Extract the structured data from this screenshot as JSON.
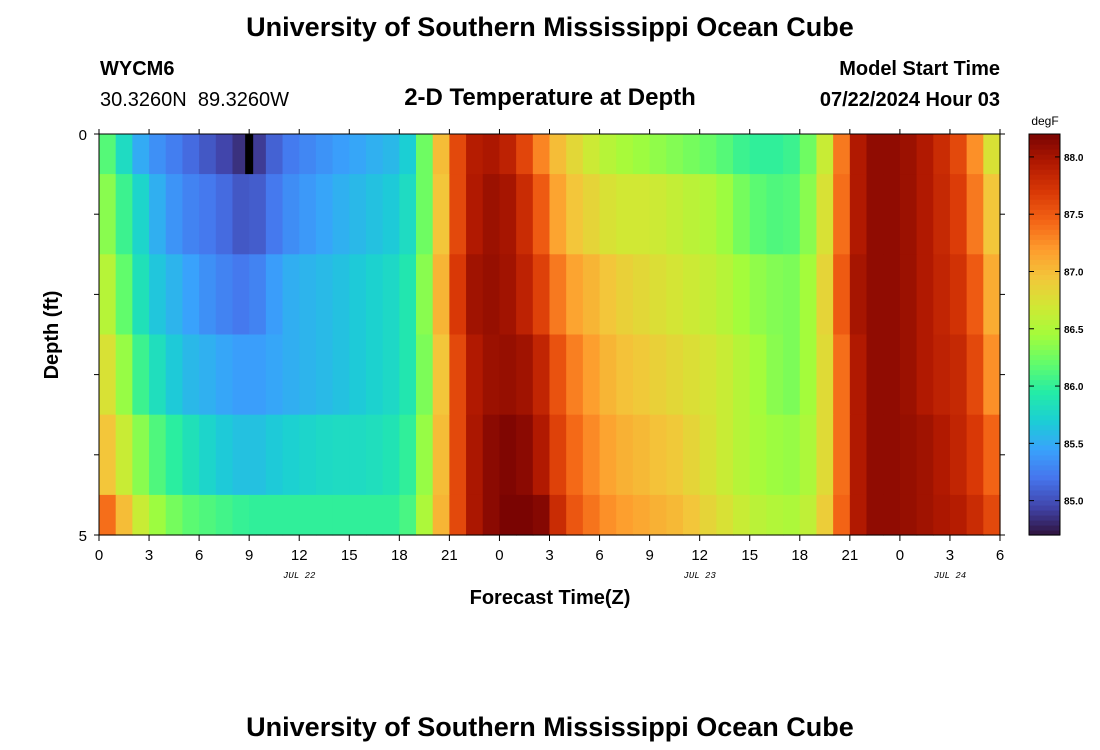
{
  "header": {
    "title": "University of Southern Mississippi Ocean Cube",
    "station_id": "WYCM6",
    "station_coords": "30.3260N  89.3260W",
    "subtitle": "2-D Temperature at Depth",
    "model_start_label": "Model Start Time",
    "model_start_value": "07/22/2024 Hour 03"
  },
  "footer": {
    "title": "University of Southern Mississippi Ocean Cube"
  },
  "colors": {
    "marker": "#000000",
    "colormap": [
      "#30123b",
      "#4145ab",
      "#4675ed",
      "#39a2fc",
      "#1bcfd4",
      "#24eca6",
      "#61fc6c",
      "#a4fc3b",
      "#d1e834",
      "#f3c63a",
      "#fe9b2d",
      "#f36315",
      "#d93806",
      "#b11901",
      "#7a0402"
    ]
  },
  "chart_data": {
    "type": "heatmap",
    "xlabel": "Forecast Time(Z)",
    "ylabel": "Depth (ft)",
    "x_range_hours": [
      0,
      54
    ],
    "x_ticks": [
      {
        "h": 0,
        "label": "0"
      },
      {
        "h": 3,
        "label": "3"
      },
      {
        "h": 6,
        "label": "6"
      },
      {
        "h": 9,
        "label": "9"
      },
      {
        "h": 12,
        "label": "12"
      },
      {
        "h": 15,
        "label": "15"
      },
      {
        "h": 18,
        "label": "18"
      },
      {
        "h": 21,
        "label": "21"
      },
      {
        "h": 24,
        "label": "0"
      },
      {
        "h": 27,
        "label": "3"
      },
      {
        "h": 30,
        "label": "6"
      },
      {
        "h": 33,
        "label": "9"
      },
      {
        "h": 36,
        "label": "12"
      },
      {
        "h": 39,
        "label": "15"
      },
      {
        "h": 42,
        "label": "18"
      },
      {
        "h": 45,
        "label": "21"
      },
      {
        "h": 48,
        "label": "0"
      },
      {
        "h": 51,
        "label": "3"
      },
      {
        "h": 54,
        "label": "6"
      }
    ],
    "date_labels": [
      {
        "h": 12,
        "label": "JUL 22"
      },
      {
        "h": 36,
        "label": "JUL 23"
      },
      {
        "h": 51,
        "label": "JUL 24"
      }
    ],
    "y_range": [
      0,
      5
    ],
    "y_ticks": [
      {
        "v": 0,
        "label": "0"
      },
      {
        "v": 5,
        "label": "5"
      }
    ],
    "depth_bins": [
      0,
      0.5,
      1.5,
      2.5,
      3.5,
      4.5,
      5
    ],
    "value_range": [
      84.7,
      88.2
    ],
    "colorbar_unit": "degF",
    "colorbar_ticks": [
      "85.0",
      "85.5",
      "86.0",
      "86.5",
      "87.0",
      "87.5",
      "88.0"
    ],
    "colorbar_tick_values": [
      85.0,
      85.5,
      86.0,
      86.5,
      87.0,
      87.5,
      88.0
    ],
    "marker_hour": 9,
    "profile_hours": [
      0,
      1,
      2,
      3,
      5,
      7,
      9,
      11,
      14,
      16,
      18,
      19,
      20,
      21,
      22,
      24,
      26,
      27,
      28,
      30,
      31,
      33,
      35,
      37,
      39,
      41,
      42,
      43,
      44,
      45,
      46,
      48,
      50,
      52,
      53,
      54
    ],
    "rows": [
      {
        "depth_from": 0,
        "depth_to": 0.5,
        "values": [
          86.3,
          86.0,
          85.6,
          85.4,
          85.2,
          85.0,
          84.8,
          85.2,
          85.4,
          85.5,
          85.6,
          85.8,
          86.7,
          87.3,
          87.9,
          88.0,
          87.5,
          87.1,
          86.9,
          86.6,
          86.5,
          86.4,
          86.3,
          86.2,
          86.0,
          86.0,
          86.1,
          86.4,
          86.9,
          87.8,
          88.1,
          88.1,
          87.9,
          87.5,
          87.0,
          86.5
        ]
      },
      {
        "depth_from": 0.5,
        "depth_to": 1.5,
        "values": [
          86.5,
          86.2,
          85.9,
          85.6,
          85.3,
          85.2,
          85.0,
          85.3,
          85.5,
          85.6,
          85.7,
          85.9,
          86.6,
          87.3,
          87.9,
          88.1,
          87.7,
          87.3,
          87.0,
          86.8,
          86.7,
          86.7,
          86.6,
          86.5,
          86.2,
          86.1,
          86.2,
          86.5,
          87.0,
          87.8,
          88.1,
          88.1,
          87.9,
          87.6,
          87.1,
          86.8
        ]
      },
      {
        "depth_from": 1.5,
        "depth_to": 2.5,
        "values": [
          86.7,
          86.4,
          86.0,
          85.7,
          85.5,
          85.3,
          85.2,
          85.5,
          85.6,
          85.7,
          85.8,
          86.0,
          86.7,
          87.4,
          88.0,
          88.1,
          87.8,
          87.5,
          87.2,
          87.0,
          86.9,
          86.8,
          86.7,
          86.6,
          86.4,
          86.3,
          86.3,
          86.6,
          87.1,
          87.9,
          88.1,
          88.1,
          87.9,
          87.7,
          87.3,
          86.9
        ]
      },
      {
        "depth_from": 2.5,
        "depth_to": 3.5,
        "values": [
          86.9,
          86.6,
          86.2,
          85.9,
          85.6,
          85.5,
          85.4,
          85.5,
          85.6,
          85.7,
          85.8,
          86.0,
          86.6,
          87.3,
          87.9,
          88.1,
          88.0,
          87.7,
          87.4,
          87.1,
          87.0,
          86.9,
          86.8,
          86.7,
          86.5,
          86.3,
          86.3,
          86.6,
          87.0,
          87.8,
          88.1,
          88.1,
          87.9,
          87.8,
          87.4,
          87.1
        ]
      },
      {
        "depth_from": 3.5,
        "depth_to": 4.5,
        "values": [
          87.1,
          86.8,
          86.5,
          86.2,
          85.9,
          85.7,
          85.6,
          85.7,
          85.8,
          85.8,
          85.9,
          86.1,
          86.7,
          87.3,
          87.9,
          88.2,
          88.1,
          87.8,
          87.5,
          87.2,
          87.1,
          87.0,
          86.9,
          86.7,
          86.5,
          86.4,
          86.4,
          86.6,
          87.0,
          87.8,
          88.1,
          88.1,
          88.0,
          87.8,
          87.6,
          87.3
        ]
      },
      {
        "depth_from": 4.5,
        "depth_to": 5,
        "values": [
          87.6,
          87.2,
          86.8,
          86.5,
          86.2,
          86.1,
          86.0,
          86.0,
          86.0,
          86.0,
          86.0,
          86.2,
          86.8,
          87.3,
          87.9,
          88.2,
          88.3,
          88.0,
          87.6,
          87.3,
          87.2,
          87.1,
          87.0,
          86.8,
          86.6,
          86.5,
          86.5,
          86.7,
          87.1,
          87.8,
          88.1,
          88.1,
          88.0,
          87.9,
          87.7,
          87.5
        ]
      }
    ]
  }
}
